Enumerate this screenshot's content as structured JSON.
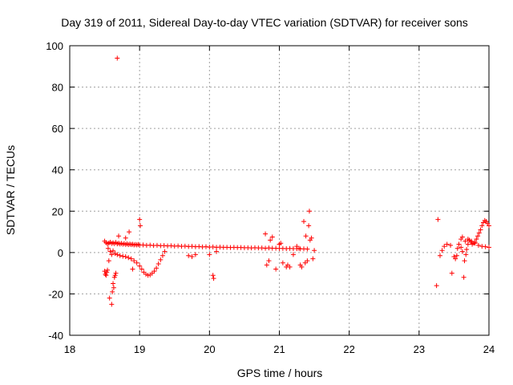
{
  "chart_data": {
    "type": "scatter",
    "title": "Day 319 of 2011, Sidereal Day-to-day VTEC variation (SDTVAR) for receiver sons",
    "xlabel": "GPS time / hours",
    "ylabel": "SDTVAR / TECUs",
    "xlim": [
      18,
      24
    ],
    "ylim": [
      -40,
      100
    ],
    "xticks": [
      18,
      19,
      20,
      21,
      22,
      23,
      24
    ],
    "yticks": [
      -40,
      -20,
      0,
      20,
      40,
      60,
      80,
      100
    ],
    "xtick_labels": [
      "18",
      "19",
      "20",
      "21",
      "22",
      "23",
      "24"
    ],
    "ytick_labels": [
      "-40",
      "-20",
      "0",
      "20",
      "40",
      "60",
      "80",
      "100"
    ],
    "grid": true,
    "marker": "+",
    "color": "#ff0000",
    "series": [
      {
        "name": "SDTVAR",
        "points": [
          [
            18.5,
            5.5
          ],
          [
            18.52,
            4.8
          ],
          [
            18.54,
            4.2
          ],
          [
            18.56,
            4.6
          ],
          [
            18.58,
            5.0
          ],
          [
            18.6,
            4.4
          ],
          [
            18.62,
            4.7
          ],
          [
            18.64,
            4.3
          ],
          [
            18.66,
            4.9
          ],
          [
            18.68,
            4.2
          ],
          [
            18.7,
            4.5
          ],
          [
            18.72,
            4.1
          ],
          [
            18.74,
            4.4
          ],
          [
            18.76,
            4.0
          ],
          [
            18.78,
            4.3
          ],
          [
            18.8,
            3.9
          ],
          [
            18.82,
            4.2
          ],
          [
            18.84,
            3.8
          ],
          [
            18.86,
            4.1
          ],
          [
            18.88,
            3.8
          ],
          [
            18.9,
            4.0
          ],
          [
            18.92,
            3.7
          ],
          [
            18.94,
            3.9
          ],
          [
            18.96,
            3.7
          ],
          [
            18.98,
            3.9
          ],
          [
            19.0,
            3.6
          ],
          [
            19.05,
            3.7
          ],
          [
            19.1,
            3.5
          ],
          [
            19.15,
            3.6
          ],
          [
            19.2,
            3.4
          ],
          [
            19.25,
            3.5
          ],
          [
            19.3,
            3.3
          ],
          [
            19.35,
            3.4
          ],
          [
            19.4,
            3.2
          ],
          [
            19.45,
            3.3
          ],
          [
            19.5,
            3.1
          ],
          [
            19.55,
            3.2
          ],
          [
            19.6,
            3.0
          ],
          [
            19.65,
            3.1
          ],
          [
            19.7,
            2.9
          ],
          [
            19.75,
            3.0
          ],
          [
            19.8,
            2.8
          ],
          [
            19.85,
            2.9
          ],
          [
            19.9,
            2.7
          ],
          [
            19.95,
            2.8
          ],
          [
            20.0,
            2.6
          ],
          [
            20.05,
            2.7
          ],
          [
            20.1,
            2.5
          ],
          [
            20.15,
            2.6
          ],
          [
            20.2,
            2.5
          ],
          [
            20.25,
            2.5
          ],
          [
            20.3,
            2.4
          ],
          [
            20.35,
            2.5
          ],
          [
            20.4,
            2.4
          ],
          [
            20.45,
            2.4
          ],
          [
            20.5,
            2.3
          ],
          [
            20.55,
            2.3
          ],
          [
            20.6,
            2.2
          ],
          [
            20.65,
            2.3
          ],
          [
            20.7,
            2.2
          ],
          [
            20.75,
            2.2
          ],
          [
            20.8,
            2.1
          ],
          [
            20.85,
            2.2
          ],
          [
            20.9,
            2.1
          ],
          [
            20.95,
            2.1
          ],
          [
            21.0,
            2.0
          ],
          [
            21.05,
            2.0
          ],
          [
            21.1,
            1.9
          ],
          [
            21.15,
            2.0
          ],
          [
            21.2,
            1.9
          ],
          [
            21.25,
            1.9
          ],
          [
            21.3,
            1.8
          ],
          [
            21.35,
            1.8
          ],
          [
            21.4,
            1.7
          ],
          [
            18.55,
            2.0
          ],
          [
            18.58,
            0.5
          ],
          [
            18.6,
            -1.0
          ],
          [
            18.62,
            0.8
          ],
          [
            18.65,
            -0.5
          ],
          [
            18.68,
            -1.0
          ],
          [
            18.72,
            -1.5
          ],
          [
            18.76,
            -1.8
          ],
          [
            18.8,
            -2.0
          ],
          [
            18.84,
            -2.5
          ],
          [
            18.88,
            -3.0
          ],
          [
            18.92,
            -4.0
          ],
          [
            18.96,
            -5.0
          ],
          [
            19.0,
            -6.5
          ],
          [
            19.03,
            -8.0
          ],
          [
            19.06,
            -9.5
          ],
          [
            19.09,
            -10.5
          ],
          [
            19.12,
            -11.0
          ],
          [
            19.15,
            -10.8
          ],
          [
            19.18,
            -10.0
          ],
          [
            19.21,
            -9.0
          ],
          [
            19.24,
            -7.5
          ],
          [
            19.27,
            -5.5
          ],
          [
            19.3,
            -3.5
          ],
          [
            19.33,
            -1.5
          ],
          [
            19.36,
            0.5
          ],
          [
            18.5,
            -9.0
          ],
          [
            18.51,
            -10.5
          ],
          [
            18.52,
            -11.0
          ],
          [
            18.53,
            -9.5
          ],
          [
            18.54,
            -8.5
          ],
          [
            18.56,
            -4.0
          ],
          [
            18.57,
            -22.0
          ],
          [
            18.6,
            -25.0
          ],
          [
            18.61,
            -19.0
          ],
          [
            18.62,
            -15.0
          ],
          [
            18.63,
            -17.0
          ],
          [
            18.64,
            -12.0
          ],
          [
            18.65,
            -11.0
          ],
          [
            18.66,
            -10.0
          ],
          [
            18.7,
            8.0
          ],
          [
            18.8,
            7.0
          ],
          [
            18.85,
            10.0
          ],
          [
            18.9,
            -8.0
          ],
          [
            18.68,
            94.0
          ],
          [
            19.0,
            16.0
          ],
          [
            19.01,
            13.0
          ],
          [
            19.7,
            -1.5
          ],
          [
            19.75,
            -2.0
          ],
          [
            19.8,
            -1.0
          ],
          [
            20.0,
            -1.0
          ],
          [
            20.05,
            -11.0
          ],
          [
            20.06,
            -12.5
          ],
          [
            20.1,
            0.5
          ],
          [
            20.8,
            9.0
          ],
          [
            20.82,
            -6.0
          ],
          [
            20.85,
            -4.0
          ],
          [
            20.87,
            6.0
          ],
          [
            20.9,
            7.5
          ],
          [
            20.95,
            -8.0
          ],
          [
            21.0,
            4.0
          ],
          [
            21.02,
            4.5
          ],
          [
            21.05,
            -5.0
          ],
          [
            21.1,
            -7.0
          ],
          [
            21.12,
            -6.0
          ],
          [
            21.15,
            -7.0
          ],
          [
            21.2,
            -1.0
          ],
          [
            21.25,
            3.0
          ],
          [
            21.28,
            2.0
          ],
          [
            21.3,
            -6.0
          ],
          [
            21.32,
            -7.0
          ],
          [
            21.35,
            15.0
          ],
          [
            21.37,
            -5.0
          ],
          [
            21.38,
            8.0
          ],
          [
            21.4,
            -4.0
          ],
          [
            21.42,
            13.0
          ],
          [
            21.43,
            20.0
          ],
          [
            21.44,
            6.0
          ],
          [
            21.46,
            7.0
          ],
          [
            21.48,
            -3.0
          ],
          [
            21.5,
            1.0
          ],
          [
            23.25,
            -16.0
          ],
          [
            23.27,
            16.0
          ],
          [
            23.3,
            -1.5
          ],
          [
            23.33,
            1.0
          ],
          [
            23.36,
            3.0
          ],
          [
            23.4,
            4.0
          ],
          [
            23.45,
            3.5
          ],
          [
            23.47,
            -10.0
          ],
          [
            23.5,
            -2.0
          ],
          [
            23.52,
            -3.0
          ],
          [
            23.54,
            -1.5
          ],
          [
            23.55,
            2.0
          ],
          [
            23.57,
            4.0
          ],
          [
            23.6,
            6.5
          ],
          [
            23.62,
            7.5
          ],
          [
            23.64,
            -12.0
          ],
          [
            23.65,
            -4.0
          ],
          [
            23.67,
            -1.0
          ],
          [
            23.68,
            1.5
          ],
          [
            23.7,
            4.0
          ],
          [
            23.72,
            6.0
          ],
          [
            23.74,
            5.0
          ],
          [
            23.76,
            4.0
          ],
          [
            23.78,
            4.5
          ],
          [
            23.8,
            5.0
          ],
          [
            23.82,
            6.5
          ],
          [
            23.84,
            8.0
          ],
          [
            23.86,
            9.5
          ],
          [
            23.88,
            11.0
          ],
          [
            23.9,
            13.0
          ],
          [
            23.92,
            14.5
          ],
          [
            23.94,
            15.5
          ],
          [
            23.96,
            15.0
          ],
          [
            23.98,
            14.0
          ],
          [
            24.0,
            13.0
          ],
          [
            23.66,
            5.5
          ],
          [
            23.7,
            6.5
          ],
          [
            23.75,
            5.5
          ],
          [
            23.8,
            4.5
          ],
          [
            23.85,
            3.5
          ],
          [
            23.9,
            3.0
          ],
          [
            23.95,
            2.8
          ],
          [
            24.0,
            2.5
          ],
          [
            23.62,
            0.5
          ],
          [
            23.6,
            2.5
          ]
        ]
      }
    ]
  }
}
